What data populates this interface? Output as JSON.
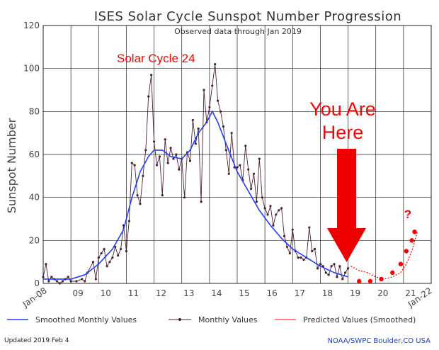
{
  "chart_data": {
    "type": "line",
    "title": "ISES Solar Cycle Sunspot Number Progression",
    "subtitle": "Observed data through Jan 2019",
    "ylabel": "Sunspot Number",
    "xlabel": "",
    "x_tick_labels": [
      "Jan-08",
      "09",
      "10",
      "11",
      "12",
      "13",
      "14",
      "15",
      "16",
      "17",
      "18",
      "19",
      "20",
      "21",
      "Jan-22"
    ],
    "xlim": [
      2008.0,
      2022.0
    ],
    "ylim": [
      0,
      120
    ],
    "y_ticks": [
      0,
      20,
      40,
      60,
      80,
      100,
      120
    ],
    "grid": true,
    "legend_position": "bottom",
    "annotations": {
      "cycle_label": "Solar Cycle 24",
      "you_are_here_line1": "You Are",
      "you_are_here_line2": "Here",
      "question_mark": "?"
    },
    "series": [
      {
        "name": "Smoothed Monthly Values",
        "color": "#1f3fff",
        "x": [
          2008.0,
          2008.5,
          2009.0,
          2009.5,
          2010.0,
          2010.5,
          2010.9,
          2011.2,
          2011.5,
          2011.8,
          2012.0,
          2012.3,
          2012.6,
          2013.0,
          2013.3,
          2013.6,
          2013.9,
          2014.1,
          2014.3,
          2014.6,
          2015.0,
          2015.4,
          2015.8,
          2016.2,
          2016.6,
          2017.0,
          2017.5,
          2018.0,
          2018.5,
          2019.0
        ],
        "y": [
          2,
          2,
          2,
          4,
          9,
          16,
          25,
          40,
          52,
          59,
          62,
          62,
          59,
          58,
          62,
          70,
          75,
          80,
          75,
          65,
          52,
          43,
          34,
          27,
          21,
          16,
          12,
          8,
          5,
          3
        ]
      },
      {
        "name": "Monthly Values",
        "color": "#4a2035",
        "x": [
          2008.0,
          2008.1,
          2008.2,
          2008.3,
          2008.4,
          2008.5,
          2008.6,
          2008.7,
          2008.8,
          2008.9,
          2009.0,
          2009.2,
          2009.4,
          2009.5,
          2009.6,
          2009.8,
          2009.9,
          2010.0,
          2010.1,
          2010.2,
          2010.3,
          2010.4,
          2010.5,
          2010.6,
          2010.7,
          2010.8,
          2010.9,
          2011.0,
          2011.1,
          2011.2,
          2011.3,
          2011.4,
          2011.5,
          2011.6,
          2011.7,
          2011.8,
          2011.9,
          2012.0,
          2012.1,
          2012.2,
          2012.3,
          2012.4,
          2012.5,
          2012.6,
          2012.7,
          2012.8,
          2012.9,
          2013.0,
          2013.1,
          2013.2,
          2013.3,
          2013.4,
          2013.5,
          2013.6,
          2013.7,
          2013.8,
          2013.9,
          2014.0,
          2014.1,
          2014.2,
          2014.3,
          2014.4,
          2014.5,
          2014.6,
          2014.7,
          2014.8,
          2014.9,
          2015.0,
          2015.1,
          2015.2,
          2015.3,
          2015.4,
          2015.5,
          2015.6,
          2015.7,
          2015.8,
          2015.9,
          2016.0,
          2016.1,
          2016.2,
          2016.3,
          2016.4,
          2016.5,
          2016.6,
          2016.7,
          2016.8,
          2016.9,
          2017.0,
          2017.1,
          2017.2,
          2017.3,
          2017.4,
          2017.5,
          2017.6,
          2017.7,
          2017.8,
          2017.9,
          2018.0,
          2018.1,
          2018.2,
          2018.3,
          2018.4,
          2018.5,
          2018.6,
          2018.7,
          2018.8,
          2018.9,
          2019.0
        ],
        "y": [
          3,
          9,
          1,
          3,
          2,
          1,
          0,
          1,
          2,
          3,
          1,
          1,
          2,
          1,
          5,
          10,
          2,
          12,
          14,
          16,
          8,
          10,
          12,
          17,
          13,
          16,
          27,
          15,
          29,
          56,
          55,
          41,
          37,
          50,
          62,
          87,
          97,
          66,
          55,
          59,
          41,
          67,
          56,
          63,
          58,
          60,
          53,
          58,
          40,
          61,
          57,
          76,
          65,
          72,
          38,
          90,
          75,
          82,
          92,
          102,
          85,
          80,
          73,
          62,
          51,
          70,
          54,
          54,
          55,
          48,
          64,
          53,
          44,
          51,
          38,
          58,
          40,
          35,
          32,
          36,
          27,
          32,
          34,
          35,
          22,
          17,
          14,
          25,
          15,
          12,
          12,
          11,
          12,
          26,
          15,
          16,
          7,
          9,
          8,
          5,
          4,
          8,
          9,
          3,
          8,
          2,
          5,
          7
        ]
      },
      {
        "name": "Predicted Values (Smoothed)",
        "color": "#ff0000",
        "x": [
          2019.1,
          2019.4,
          2019.7,
          2020.0,
          2020.3,
          2020.6,
          2020.9,
          2021.1,
          2021.3,
          2021.5
        ],
        "y": [
          8,
          6,
          5,
          3,
          2,
          3,
          5,
          9,
          15,
          24
        ],
        "points_x": [
          2019.4,
          2019.8,
          2020.2,
          2020.6,
          2020.9,
          2021.1,
          2021.3,
          2021.4
        ],
        "points_y": [
          1,
          1,
          2,
          5,
          9,
          15,
          20,
          24
        ]
      }
    ]
  },
  "footer": {
    "updated": "Updated 2019 Feb  4",
    "source": "NOAA/SWPC Boulder,CO USA"
  }
}
